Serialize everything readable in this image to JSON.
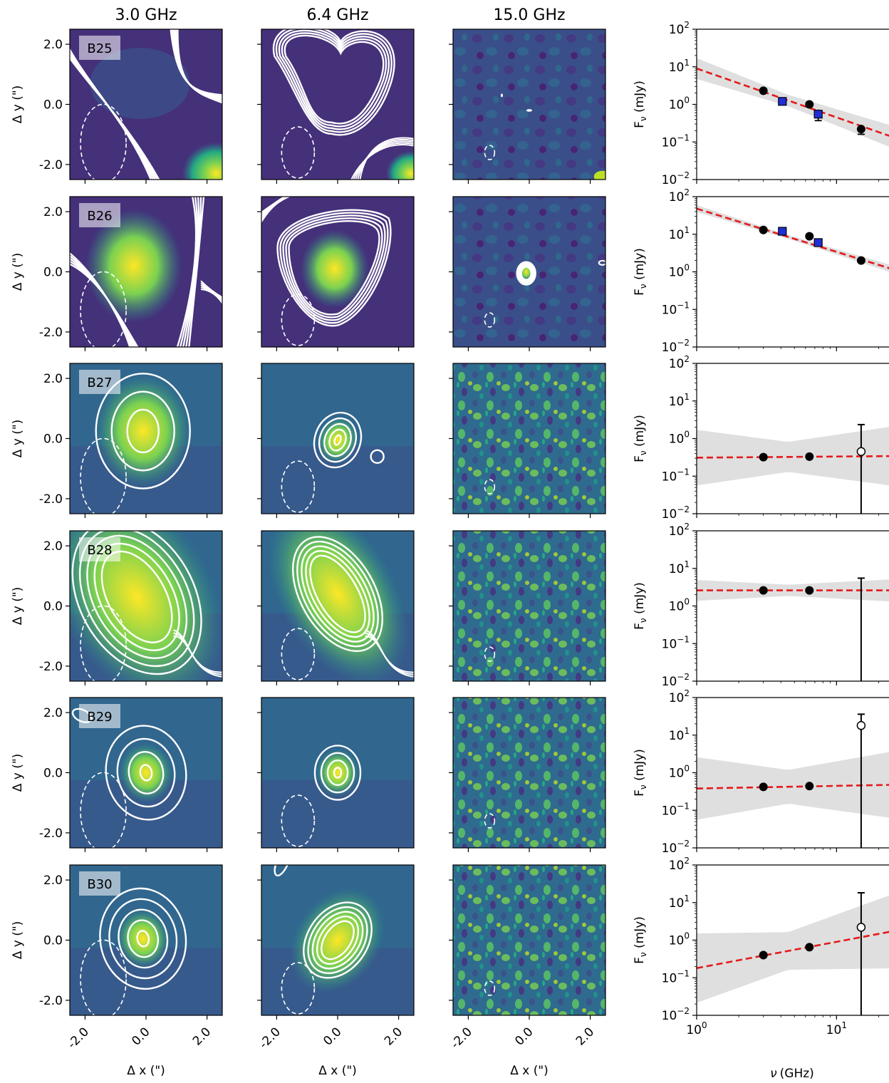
{
  "columns": [
    "3.0 GHz",
    "6.4 GHz",
    "15.0 GHz"
  ],
  "axis_labels": {
    "img_x": "Δ x (\")",
    "img_y": "Δ y (\")",
    "sed_x": "ν (GHz)",
    "sed_y": "F_ν (mJy)"
  },
  "image_ticks": [
    "2.0",
    "0.0",
    "-2.0"
  ],
  "image_xticks": [
    "-2.0",
    "0.0",
    "2.0"
  ],
  "sed_yticks": [
    "10^2",
    "10^1",
    "10^0",
    "10^-1",
    "10^-2"
  ],
  "sed_xticks": [
    "10^0",
    "10^1"
  ],
  "colors": {
    "fit": "#e41a1c",
    "vla": "#000000",
    "literature": "#1f2fd6",
    "band": "#d9d9d9",
    "contour": "#ffffff"
  },
  "chart_data": [
    {
      "type": "scatter",
      "source": "B25",
      "xlim": [
        1,
        30
      ],
      "ylim": [
        0.01,
        100
      ],
      "log_x": true,
      "log_y": true,
      "fit": {
        "ref_x": 1,
        "ref_y": 9.0,
        "slope": -1.3,
        "band": 0.15
      },
      "points": [
        {
          "x": 3.0,
          "y": 2.3,
          "err": 0.2,
          "kind": "vla"
        },
        {
          "x": 6.4,
          "y": 1.0,
          "err": 0.1,
          "kind": "vla"
        },
        {
          "x": 15.0,
          "y": 0.22,
          "err": 0.06,
          "kind": "vla"
        },
        {
          "x": 4.1,
          "y": 1.2,
          "err": 0.1,
          "kind": "literature"
        },
        {
          "x": 7.4,
          "y": 0.55,
          "err": 0.18,
          "kind": "literature"
        }
      ]
    },
    {
      "type": "scatter",
      "source": "B26",
      "xlim": [
        1,
        30
      ],
      "ylim": [
        0.01,
        100
      ],
      "log_x": true,
      "log_y": true,
      "fit": {
        "ref_x": 1,
        "ref_y": 48.0,
        "slope": -1.15,
        "band": 0.05
      },
      "points": [
        {
          "x": 3.0,
          "y": 13.0,
          "err": 0.6,
          "kind": "vla"
        },
        {
          "x": 6.4,
          "y": 8.8,
          "err": 0.5,
          "kind": "vla"
        },
        {
          "x": 15.0,
          "y": 2.0,
          "err": 0.1,
          "kind": "vla"
        },
        {
          "x": 4.1,
          "y": 12.0,
          "err": 0.6,
          "kind": "literature"
        },
        {
          "x": 7.4,
          "y": 6.0,
          "err": 0.4,
          "kind": "literature"
        }
      ]
    },
    {
      "type": "scatter",
      "source": "B27",
      "xlim": [
        1,
        30
      ],
      "ylim": [
        0.01,
        100
      ],
      "log_x": true,
      "log_y": true,
      "fit": {
        "ref_x": 1,
        "ref_y": 0.31,
        "slope": 0.03,
        "band": 0.4
      },
      "points": [
        {
          "x": 3.0,
          "y": 0.32,
          "err": 0.02,
          "kind": "vla"
        },
        {
          "x": 6.4,
          "y": 0.33,
          "err": 0.02,
          "kind": "vla"
        },
        {
          "x": 15.0,
          "y": 0.45,
          "err_up": 1.9,
          "kind": "upper"
        }
      ]
    },
    {
      "type": "scatter",
      "source": "B28",
      "xlim": [
        1,
        30
      ],
      "ylim": [
        0.01,
        100
      ],
      "log_x": true,
      "log_y": true,
      "fit": {
        "ref_x": 1,
        "ref_y": 2.6,
        "slope": 0.0,
        "band": 0.15
      },
      "points": [
        {
          "x": 3.0,
          "y": 2.6,
          "err": 0.1,
          "kind": "vla"
        },
        {
          "x": 6.4,
          "y": 2.6,
          "err": 0.1,
          "kind": "vla"
        },
        {
          "x": 15.0,
          "y": 0.0,
          "err_up": 5.5,
          "kind": "limit"
        }
      ]
    },
    {
      "type": "scatter",
      "source": "B29",
      "xlim": [
        1,
        30
      ],
      "ylim": [
        0.01,
        100
      ],
      "log_x": true,
      "log_y": true,
      "fit": {
        "ref_x": 1,
        "ref_y": 0.38,
        "slope": 0.07,
        "band": 0.45
      },
      "points": [
        {
          "x": 3.0,
          "y": 0.42,
          "err": 0.03,
          "kind": "vla"
        },
        {
          "x": 6.4,
          "y": 0.44,
          "err": 0.03,
          "kind": "vla"
        },
        {
          "x": 15.0,
          "y": 18.0,
          "err_up": 18.0,
          "kind": "upper"
        }
      ]
    },
    {
      "type": "scatter",
      "source": "B30",
      "xlim": [
        1,
        30
      ],
      "ylim": [
        0.01,
        100
      ],
      "log_x": true,
      "log_y": true,
      "fit": {
        "ref_x": 1,
        "ref_y": 0.18,
        "slope": 0.7,
        "band": 0.5
      },
      "points": [
        {
          "x": 3.0,
          "y": 0.4,
          "err": 0.03,
          "kind": "vla"
        },
        {
          "x": 6.4,
          "y": 0.65,
          "err": 0.04,
          "kind": "vla"
        },
        {
          "x": 15.0,
          "y": 2.2,
          "err_up": 16.0,
          "kind": "upper"
        }
      ]
    }
  ]
}
